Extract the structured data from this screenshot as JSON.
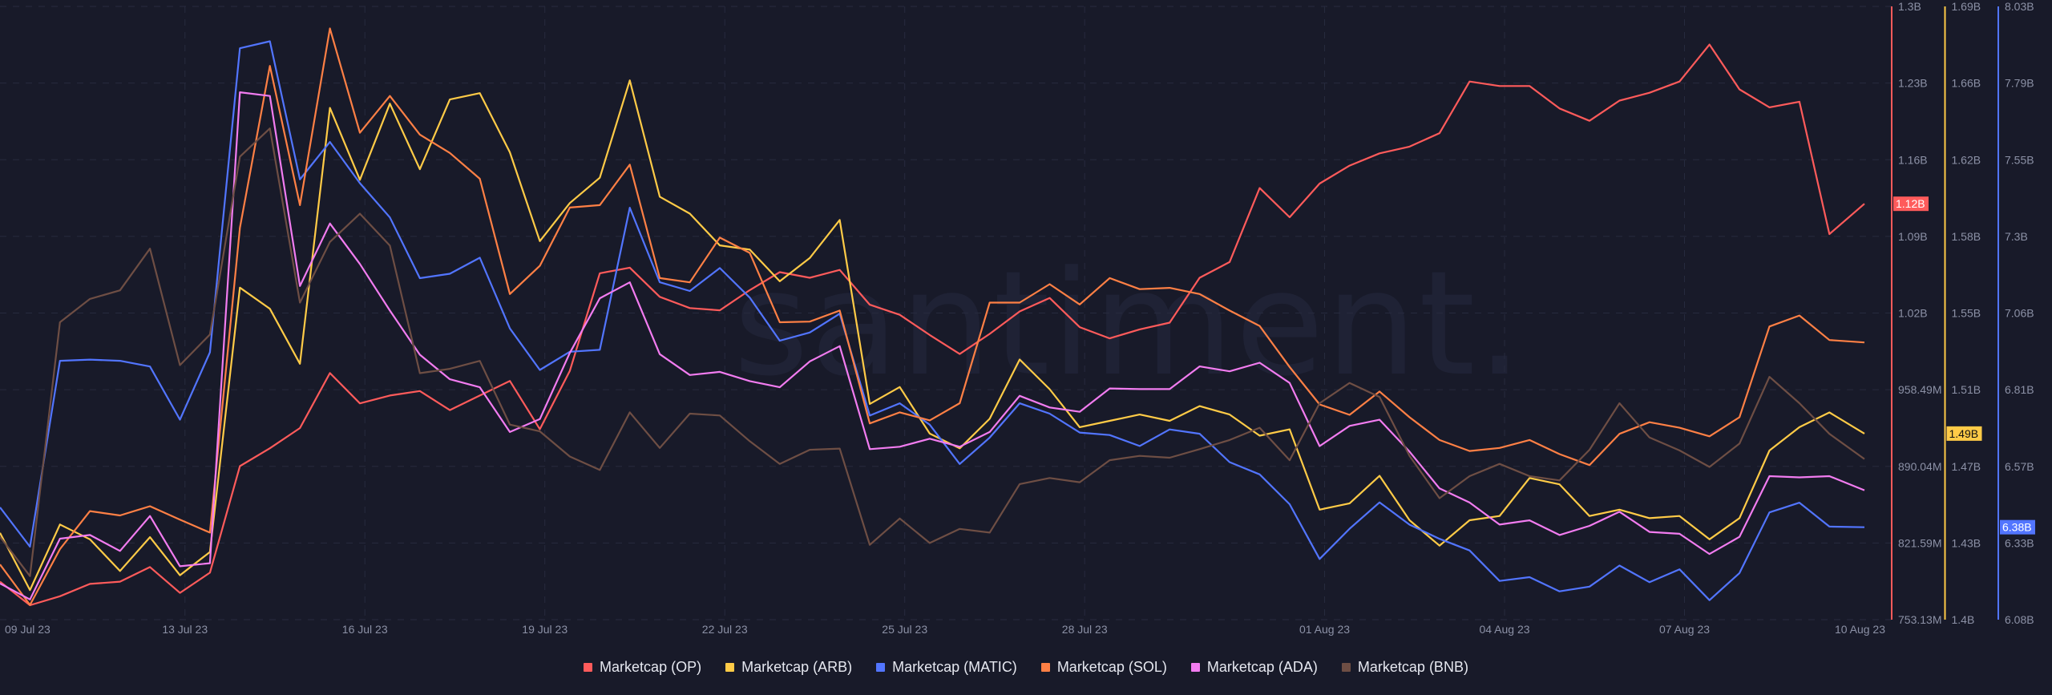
{
  "watermark": "santiment.",
  "chart_data": {
    "type": "line",
    "title": "",
    "x": [
      "2023-07-09T22:00",
      "2023-07-10T10:00",
      "2023-07-10T22:00",
      "2023-07-11T10:00",
      "2023-07-11T22:00",
      "2023-07-12T10:00",
      "2023-07-12T22:00",
      "2023-07-13T10:00",
      "2023-07-13T22:00",
      "2023-07-14T10:00",
      "2023-07-14T22:00",
      "2023-07-15T10:00",
      "2023-07-15T22:00",
      "2023-07-16T10:00",
      "2023-07-16T22:00",
      "2023-07-17T10:00",
      "2023-07-17T22:00",
      "2023-07-18T10:00",
      "2023-07-18T22:00",
      "2023-07-19T10:00",
      "2023-07-19T22:00",
      "2023-07-20T10:00",
      "2023-07-20T22:00",
      "2023-07-21T10:00",
      "2023-07-21T22:00",
      "2023-07-22T10:00",
      "2023-07-22T22:00",
      "2023-07-23T10:00",
      "2023-07-23T22:00",
      "2023-07-24T10:00",
      "2023-07-24T22:00",
      "2023-07-25T10:00",
      "2023-07-25T22:00",
      "2023-07-26T10:00",
      "2023-07-26T22:00",
      "2023-07-27T10:00",
      "2023-07-27T22:00",
      "2023-07-28T10:00",
      "2023-07-28T22:00",
      "2023-07-29T10:00",
      "2023-07-29T22:00",
      "2023-07-30T10:00",
      "2023-07-30T22:00",
      "2023-07-31T10:00",
      "2023-07-31T22:00",
      "2023-08-01T10:00",
      "2023-08-01T22:00",
      "2023-08-02T10:00",
      "2023-08-02T22:00",
      "2023-08-03T10:00",
      "2023-08-03T22:00",
      "2023-08-04T10:00",
      "2023-08-04T22:00",
      "2023-08-05T10:00",
      "2023-08-05T22:00",
      "2023-08-06T10:00",
      "2023-08-06T22:00",
      "2023-08-07T10:00",
      "2023-08-07T22:00",
      "2023-08-08T10:00",
      "2023-08-08T22:00",
      "2023-08-09T10:00",
      "2023-08-10T00:00"
    ],
    "x_ticks": [
      {
        "label": "09 Jul 23",
        "date": "2023-07-09T22:00"
      },
      {
        "label": "13 Jul 23",
        "date": "2023-07-13T00:00"
      },
      {
        "label": "16 Jul 23",
        "date": "2023-07-16T00:00"
      },
      {
        "label": "19 Jul 23",
        "date": "2023-07-19T00:00"
      },
      {
        "label": "22 Jul 23",
        "date": "2023-07-22T00:00"
      },
      {
        "label": "25 Jul 23",
        "date": "2023-07-25T00:00"
      },
      {
        "label": "28 Jul 23",
        "date": "2023-07-28T00:00"
      },
      {
        "label": "01 Aug 23",
        "date": "2023-08-01T00:00"
      },
      {
        "label": "04 Aug 23",
        "date": "2023-08-04T00:00"
      },
      {
        "label": "07 Aug 23",
        "date": "2023-08-07T00:00"
      },
      {
        "label": "10 Aug 23",
        "date": "2023-08-10T00:00"
      }
    ],
    "grid": true,
    "legend_position": "bottom",
    "y_axes": [
      {
        "id": "op",
        "color": "#ff5b5b",
        "ylim": [
          0.75313,
          1.3
        ],
        "ticks": [
          "1.3B",
          "1.23B",
          "1.16B",
          "1.09B",
          "1.02B",
          "958.49M",
          "890.04M",
          "821.59M",
          "753.13M"
        ],
        "badge": "1.12B",
        "badge_text_color": "#ffffff"
      },
      {
        "id": "arb",
        "color": "#ffcb47",
        "ylim": [
          1.4,
          1.69
        ],
        "ticks": [
          "1.69B",
          "1.66B",
          "1.62B",
          "1.58B",
          "1.55B",
          "1.51B",
          "1.47B",
          "1.43B",
          "1.4B"
        ],
        "badge": "1.49B",
        "badge_text_color": "#111111"
      },
      {
        "id": "matic",
        "color": "#5275ff",
        "ylim": [
          6.08,
          8.03
        ],
        "ticks": [
          "8.03B",
          "7.79B",
          "7.55B",
          "7.3B",
          "7.06B",
          "6.81B",
          "6.57B",
          "6.33B",
          "6.08B"
        ],
        "badge": "6.38B",
        "badge_text_color": "#ffffff"
      }
    ],
    "series": [
      {
        "name": "Marketcap (OP)",
        "color": "#ff5b5b",
        "axis": "op",
        "unit": "USD billions",
        "values": [
          0.787,
          0.766,
          0.774,
          0.785,
          0.787,
          0.8,
          0.777,
          0.795,
          0.89,
          0.906,
          0.924,
          0.973,
          0.946,
          0.953,
          0.957,
          0.94,
          0.953,
          0.966,
          0.923,
          0.975,
          1.062,
          1.067,
          1.041,
          1.031,
          1.029,
          1.047,
          1.063,
          1.058,
          1.065,
          1.034,
          1.025,
          1.007,
          0.99,
          1.008,
          1.028,
          1.04,
          1.014,
          1.004,
          1.012,
          1.018,
          1.058,
          1.072,
          1.138,
          1.112,
          1.142,
          1.158,
          1.169,
          1.175,
          1.187,
          1.233,
          1.229,
          1.229,
          1.209,
          1.198,
          1.216,
          1.223,
          1.233,
          1.266,
          1.226,
          1.21,
          1.215,
          1.097,
          1.124
        ]
      },
      {
        "name": "Marketcap (ARB)",
        "color": "#ffcb47",
        "axis": "arb",
        "unit": "USD billions",
        "values": [
          1.441,
          1.414,
          1.445,
          1.438,
          1.423,
          1.439,
          1.421,
          1.432,
          1.557,
          1.547,
          1.521,
          1.642,
          1.608,
          1.644,
          1.613,
          1.646,
          1.649,
          1.621,
          1.579,
          1.597,
          1.609,
          1.655,
          1.6,
          1.592,
          1.577,
          1.575,
          1.56,
          1.571,
          1.589,
          1.502,
          1.51,
          1.488,
          1.481,
          1.495,
          1.523,
          1.509,
          1.491,
          1.494,
          1.497,
          1.494,
          1.501,
          1.497,
          1.487,
          1.49,
          1.452,
          1.455,
          1.468,
          1.447,
          1.435,
          1.447,
          1.449,
          1.467,
          1.464,
          1.449,
          1.452,
          1.448,
          1.449,
          1.438,
          1.448,
          1.48,
          1.491,
          1.498,
          1.488
        ]
      },
      {
        "name": "Marketcap (MATIC)",
        "color": "#5275ff",
        "axis": "matic",
        "unit": "USD billions",
        "values": [
          6.437,
          6.312,
          6.903,
          6.907,
          6.903,
          6.885,
          6.716,
          6.93,
          7.897,
          7.919,
          7.48,
          7.599,
          7.468,
          7.359,
          7.166,
          7.18,
          7.231,
          7.006,
          6.874,
          6.932,
          6.938,
          7.39,
          7.153,
          7.125,
          7.198,
          7.104,
          6.967,
          6.993,
          7.053,
          6.729,
          6.768,
          6.7,
          6.575,
          6.659,
          6.768,
          6.735,
          6.675,
          6.667,
          6.632,
          6.685,
          6.671,
          6.581,
          6.542,
          6.447,
          6.273,
          6.369,
          6.453,
          6.382,
          6.337,
          6.3,
          6.203,
          6.215,
          6.17,
          6.185,
          6.252,
          6.199,
          6.24,
          6.142,
          6.228,
          6.421,
          6.452,
          6.376,
          6.374
        ]
      },
      {
        "name": "Marketcap (SOL)",
        "color": "#ff8045",
        "axis": "hidden",
        "unit": "relative (0-100, axis not shown)",
        "values": [
          9.0,
          2.4,
          11.5,
          17.7,
          17.0,
          18.5,
          16.3,
          14.2,
          63.9,
          90.3,
          67.6,
          96.4,
          79.4,
          85.4,
          79.1,
          76.1,
          71.9,
          53.1,
          57.7,
          67.2,
          67.6,
          74.2,
          55.7,
          55.0,
          62.3,
          59.8,
          48.5,
          48.6,
          50.4,
          32.0,
          33.8,
          32.5,
          35.3,
          51.7,
          51.7,
          54.7,
          51.4,
          55.7,
          53.9,
          54.1,
          53.1,
          50.4,
          47.9,
          41.2,
          35.1,
          33.4,
          37.2,
          33.0,
          29.3,
          27.5,
          28.0,
          29.3,
          27.0,
          25.2,
          30.3,
          32.2,
          31.3,
          29.9,
          33.0,
          47.8,
          49.6,
          45.6,
          45.2
        ]
      },
      {
        "name": "Marketcap (ADA)",
        "color": "#f27cf0",
        "axis": "hidden",
        "unit": "relative (0-100, axis not shown)",
        "values": [
          5.9,
          3.3,
          13.2,
          13.8,
          11.2,
          16.9,
          8.7,
          9.2,
          86.0,
          85.4,
          54.4,
          64.6,
          58.0,
          50.4,
          43.2,
          39.2,
          37.9,
          30.6,
          32.7,
          43.5,
          52.4,
          55.0,
          43.3,
          39.9,
          40.4,
          38.9,
          37.9,
          42.1,
          44.6,
          27.8,
          28.2,
          29.5,
          28.2,
          30.6,
          36.5,
          34.6,
          33.9,
          37.7,
          37.6,
          37.6,
          41.3,
          40.5,
          41.9,
          38.6,
          28.3,
          31.6,
          32.6,
          27.4,
          21.4,
          19.1,
          15.5,
          16.2,
          13.8,
          15.3,
          17.6,
          14.3,
          14.0,
          10.7,
          13.5,
          23.4,
          23.2,
          23.4,
          21.1
        ]
      },
      {
        "name": "Marketcap (BNB)",
        "color": "#6e4e44",
        "axis": "hidden",
        "unit": "relative (0-100, axis not shown)",
        "values": [
          13.5,
          7.1,
          48.5,
          52.3,
          53.7,
          60.5,
          41.5,
          46.5,
          75.5,
          80.1,
          51.7,
          61.6,
          66.2,
          61.0,
          40.2,
          40.9,
          42.2,
          31.8,
          30.7,
          26.6,
          24.4,
          33.8,
          28.0,
          33.6,
          33.3,
          29.1,
          25.4,
          27.7,
          27.9,
          12.2,
          16.5,
          12.5,
          14.8,
          14.2,
          22.1,
          23.1,
          22.4,
          26.0,
          26.7,
          26.4,
          27.8,
          29.3,
          31.3,
          26.0,
          35.3,
          38.6,
          36.3,
          26.7,
          19.8,
          23.4,
          25.4,
          23.4,
          22.7,
          27.7,
          35.3,
          29.7,
          27.6,
          24.9,
          28.7,
          39.6,
          35.3,
          30.3,
          26.2
        ]
      }
    ]
  },
  "legend": {
    "items": [
      {
        "label": "Marketcap (OP)",
        "color": "#ff5b5b"
      },
      {
        "label": "Marketcap (ARB)",
        "color": "#ffcb47"
      },
      {
        "label": "Marketcap (MATIC)",
        "color": "#5275ff"
      },
      {
        "label": "Marketcap (SOL)",
        "color": "#ff8045"
      },
      {
        "label": "Marketcap (ADA)",
        "color": "#f27cf0"
      },
      {
        "label": "Marketcap (BNB)",
        "color": "#6e4e44"
      }
    ]
  }
}
